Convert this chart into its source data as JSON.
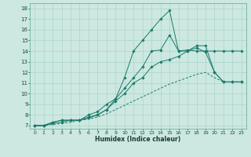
{
  "xlabel": "Humidex (Indice chaleur)",
  "bg_color": "#cce8e0",
  "grid_color": "#aad4cc",
  "line_color": "#1a7a6a",
  "xlim": [
    -0.5,
    23.5
  ],
  "ylim": [
    6.7,
    18.5
  ],
  "xticks": [
    0,
    1,
    2,
    3,
    4,
    5,
    6,
    7,
    8,
    9,
    10,
    11,
    12,
    13,
    14,
    15,
    16,
    17,
    18,
    19,
    20,
    21,
    22,
    23
  ],
  "yticks": [
    7,
    8,
    9,
    10,
    11,
    12,
    13,
    14,
    15,
    16,
    17,
    18
  ],
  "line_spike_x": [
    0,
    1,
    2,
    3,
    4,
    5,
    6,
    7,
    8,
    9,
    10,
    11,
    12,
    13,
    14,
    15,
    16,
    17,
    18,
    19,
    20,
    21,
    22,
    23
  ],
  "line_spike_y": [
    7.0,
    7.0,
    7.3,
    7.5,
    7.5,
    7.5,
    7.7,
    8.0,
    8.5,
    9.5,
    11.5,
    14.0,
    15.0,
    16.0,
    17.0,
    17.8,
    14.0,
    14.1,
    14.0,
    14.0,
    14.0,
    14.0,
    14.0,
    14.0
  ],
  "line_mid_x": [
    0,
    1,
    2,
    3,
    4,
    5,
    6,
    7,
    8,
    9,
    10,
    11,
    12,
    13,
    14,
    15,
    16,
    17,
    18,
    19,
    20,
    21,
    22,
    23
  ],
  "line_mid_y": [
    7.0,
    7.0,
    7.3,
    7.5,
    7.5,
    7.5,
    8.0,
    8.3,
    9.0,
    9.5,
    10.5,
    11.5,
    12.5,
    14.0,
    14.1,
    15.5,
    14.0,
    14.0,
    14.5,
    14.5,
    12.0,
    11.1,
    11.1,
    11.1
  ],
  "line_lower_x": [
    0,
    1,
    2,
    3,
    4,
    5,
    6,
    7,
    8,
    9,
    10,
    11,
    12,
    13,
    14,
    15,
    16,
    17,
    18,
    19,
    20,
    21,
    22,
    23
  ],
  "line_lower_y": [
    7.0,
    7.0,
    7.2,
    7.3,
    7.5,
    7.5,
    7.8,
    8.0,
    8.5,
    9.3,
    10.0,
    11.0,
    11.5,
    12.5,
    13.0,
    13.2,
    13.5,
    14.0,
    14.3,
    13.9,
    12.0,
    11.1,
    11.1,
    11.1
  ],
  "line_bottom_x": [
    0,
    1,
    2,
    3,
    4,
    5,
    6,
    7,
    8,
    9,
    10,
    11,
    12,
    13,
    14,
    15,
    16,
    17,
    18,
    19,
    20,
    21,
    22,
    23
  ],
  "line_bottom_y": [
    7.0,
    7.0,
    7.1,
    7.2,
    7.3,
    7.5,
    7.6,
    7.8,
    8.1,
    8.5,
    8.9,
    9.3,
    9.7,
    10.1,
    10.5,
    10.9,
    11.2,
    11.5,
    11.8,
    12.0,
    11.5,
    11.1,
    11.1,
    11.1
  ]
}
